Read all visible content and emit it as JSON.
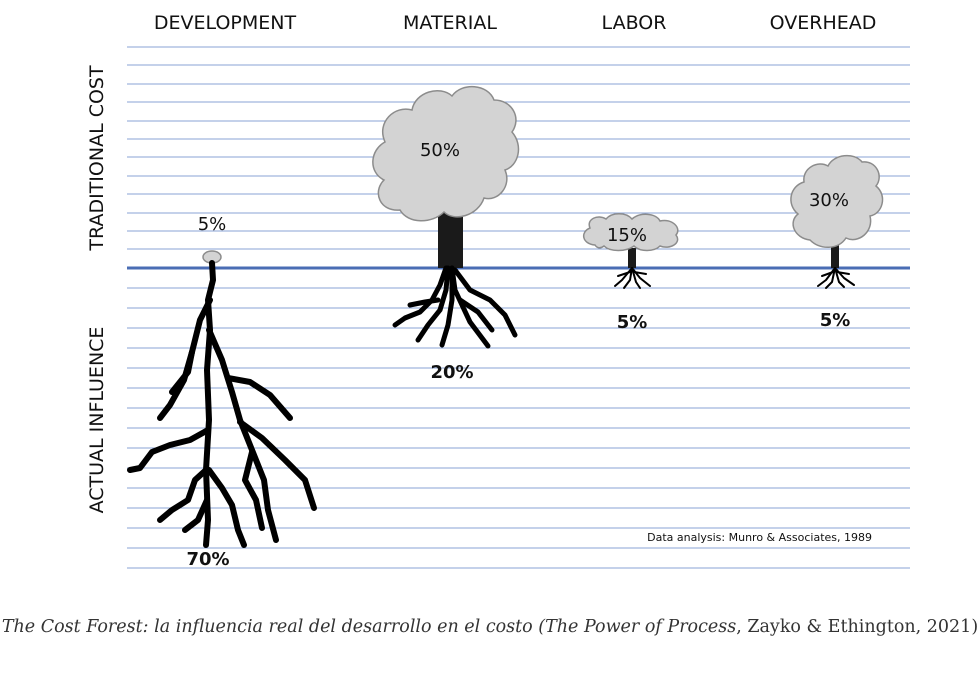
{
  "columns": [
    {
      "header": "DEVELOPMENT",
      "traditional_cost": "5%",
      "actual_influence": "70%"
    },
    {
      "header": "MATERIAL",
      "traditional_cost": "50%",
      "actual_influence": "20%"
    },
    {
      "header": "LABOR",
      "traditional_cost": "15%",
      "actual_influence": "5%"
    },
    {
      "header": "OVERHEAD",
      "traditional_cost": "30%",
      "actual_influence": "5%"
    }
  ],
  "axis": {
    "top_label": "TRADITIONAL COST",
    "bottom_label": "ACTUAL INFLUENCE"
  },
  "source_note": "Data analysis: Munro & Associates, 1989",
  "caption": {
    "part1": "The Cost Forest: la influencia real del desarrollo en el costo (",
    "part2": "The Power of Process",
    "part3": ", Zayko & Ethington, 2021)"
  },
  "colors": {
    "grid_line": "#8aa3d4",
    "baseline": "#4a6db4",
    "canopy": "#d3d3d3",
    "trunk": "#1a1a1a"
  }
}
